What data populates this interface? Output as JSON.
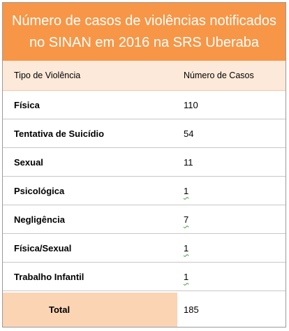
{
  "title": {
    "line1": "Número de casos de violências notificados",
    "line2": "no SINAN em 2016 na SRS Uberaba"
  },
  "headers": {
    "type": "Tipo de Violência",
    "count": "Número de Casos"
  },
  "rows": [
    {
      "type": "Física",
      "count": "110"
    },
    {
      "type": "Tentativa de Suicídio",
      "count": "54"
    },
    {
      "type": "Sexual",
      "count": "11"
    },
    {
      "type": "Psicológica",
      "count": "1"
    },
    {
      "type": "Negligência",
      "count": "7"
    },
    {
      "type": "Física/Sexual",
      "count": "1"
    },
    {
      "type": "Trabalho Infantil",
      "count": "1"
    }
  ],
  "total": {
    "label": "Total",
    "value": "185"
  },
  "colors": {
    "title_bg": "#f79646",
    "header_bg": "#fde9d9",
    "total_bg": "#fbd4b4"
  }
}
